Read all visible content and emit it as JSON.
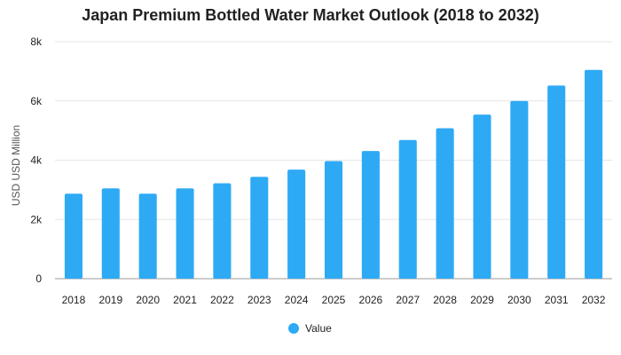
{
  "chart_data": {
    "type": "bar",
    "title": "Japan Premium Bottled Water Market Outlook (2018 to 2032)",
    "xlabel": "",
    "ylabel": "USD USD Million",
    "categories": [
      "2018",
      "2019",
      "2020",
      "2021",
      "2022",
      "2023",
      "2024",
      "2025",
      "2026",
      "2027",
      "2028",
      "2029",
      "2030",
      "2031",
      "2032"
    ],
    "series": [
      {
        "name": "Value",
        "values": [
          2870,
          3050,
          2870,
          3050,
          3220,
          3440,
          3680,
          3970,
          4310,
          4680,
          5080,
          5540,
          6000,
          6520,
          7050
        ],
        "color": "#2eaaf5"
      }
    ],
    "ylim": [
      0,
      8000
    ],
    "yticks": [
      0,
      2000,
      4000,
      6000,
      8000
    ],
    "ytick_labels": [
      "0",
      "2k",
      "4k",
      "6k",
      "8k"
    ],
    "grid": true,
    "legend_position": "bottom-center"
  }
}
